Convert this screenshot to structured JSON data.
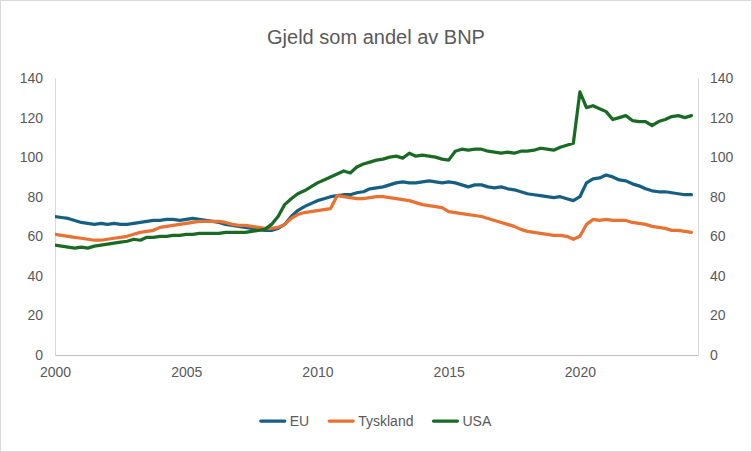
{
  "chart_data": {
    "type": "line",
    "title": "Gjeld som andel av BNP",
    "x": [
      2000,
      2000.25,
      2000.5,
      2000.75,
      2001,
      2001.25,
      2001.5,
      2001.75,
      2002,
      2002.25,
      2002.5,
      2002.75,
      2003,
      2003.25,
      2003.5,
      2003.75,
      2004,
      2004.25,
      2004.5,
      2004.75,
      2005,
      2005.25,
      2005.5,
      2005.75,
      2006,
      2006.25,
      2006.5,
      2006.75,
      2007,
      2007.25,
      2007.5,
      2007.75,
      2008,
      2008.25,
      2008.5,
      2008.75,
      2009,
      2009.25,
      2009.5,
      2009.75,
      2010,
      2010.25,
      2010.5,
      2010.75,
      2011,
      2011.25,
      2011.5,
      2011.75,
      2012,
      2012.25,
      2012.5,
      2012.75,
      2013,
      2013.25,
      2013.5,
      2013.75,
      2014,
      2014.25,
      2014.5,
      2014.75,
      2015,
      2015.25,
      2015.5,
      2015.75,
      2016,
      2016.25,
      2016.5,
      2016.75,
      2017,
      2017.25,
      2017.5,
      2017.75,
      2018,
      2018.25,
      2018.5,
      2018.75,
      2019,
      2019.25,
      2019.5,
      2019.75,
      2020,
      2020.25,
      2020.5,
      2020.75,
      2021,
      2021.25,
      2021.5,
      2021.75,
      2022,
      2022.25,
      2022.5,
      2022.75,
      2023,
      2023.25,
      2023.5,
      2023.75,
      2024,
      2024.25
    ],
    "series": [
      {
        "name": "EU",
        "color": "#156082",
        "values": [
          70,
          69.5,
          69,
          68,
          67,
          66.5,
          66,
          66.5,
          66,
          66.5,
          66,
          66,
          66.5,
          67,
          67.5,
          68,
          68,
          68.5,
          68.5,
          68,
          68.5,
          69,
          68.5,
          68,
          67.5,
          67,
          66,
          65.5,
          65,
          64.5,
          64,
          63.5,
          63,
          63,
          64,
          66,
          70,
          73,
          75,
          76.5,
          78,
          79,
          80,
          80.5,
          81,
          81,
          82,
          82.5,
          84,
          84.5,
          85,
          86,
          87,
          87.5,
          87,
          87,
          87.5,
          88,
          87.5,
          87,
          87.5,
          87,
          86,
          85,
          86,
          86,
          85,
          84.5,
          85,
          84,
          83.5,
          82.5,
          81.5,
          81,
          80.5,
          80,
          79.5,
          80,
          79,
          78,
          80,
          87,
          89,
          89.5,
          91,
          90,
          88.5,
          88,
          86.5,
          85.5,
          84,
          83,
          82.5,
          82.5,
          82,
          81.5,
          81,
          81
        ]
      },
      {
        "name": "Tyskland",
        "color": "#e97132",
        "values": [
          61,
          60.5,
          60,
          59.5,
          59,
          58.5,
          58,
          58,
          58.5,
          59,
          59.5,
          60,
          61,
          62,
          62.5,
          63,
          64.5,
          65,
          65.5,
          66,
          66.5,
          67,
          67.5,
          67.5,
          67.5,
          67.5,
          67,
          66,
          65.5,
          65.5,
          65,
          64.5,
          64,
          64,
          64.5,
          66,
          69,
          71,
          72,
          72.5,
          73,
          73.5,
          74,
          80.5,
          80,
          79.5,
          79,
          79,
          79.5,
          80,
          80,
          79.5,
          79,
          78.5,
          78,
          77,
          76,
          75.5,
          75,
          74.5,
          72.5,
          72,
          71.5,
          71,
          70.5,
          70,
          69,
          68,
          67,
          66,
          65,
          63.5,
          62.5,
          62,
          61.5,
          61,
          60.5,
          60.5,
          60,
          58.5,
          60,
          66,
          68.5,
          68,
          68.5,
          68,
          68,
          68,
          67,
          66.5,
          66,
          65,
          64.5,
          64,
          63,
          63,
          62.5,
          62
        ]
      },
      {
        "name": "USA",
        "color": "#196b24",
        "values": [
          55.5,
          55,
          54.5,
          54,
          54.5,
          54,
          55,
          55.5,
          56,
          56.5,
          57,
          57.5,
          58.5,
          58,
          59.5,
          59.5,
          60,
          60,
          60.5,
          60.5,
          61,
          61,
          61.5,
          61.5,
          61.5,
          61.5,
          62,
          62,
          62,
          62,
          62.5,
          63,
          63.5,
          66,
          70,
          76,
          79,
          81.5,
          83,
          85,
          87,
          88.5,
          90,
          91.5,
          93,
          92,
          95,
          96.5,
          97.5,
          98.5,
          99,
          100,
          100.5,
          99.5,
          102,
          100.5,
          101,
          100.5,
          100,
          99,
          98.5,
          103,
          104,
          103.5,
          104,
          104,
          103,
          102.5,
          102,
          102.5,
          102,
          103,
          103,
          103.5,
          104.5,
          104,
          103.5,
          105,
          106,
          107,
          133,
          125,
          126,
          124.5,
          123,
          119,
          120,
          121,
          118.5,
          118,
          118,
          116,
          118,
          119,
          120.5,
          121,
          120,
          121
        ]
      }
    ],
    "xlim": [
      2000,
      2024.5
    ],
    "xticks": [
      2000,
      2005,
      2010,
      2015,
      2020
    ],
    "ylim": [
      0,
      140
    ],
    "yticks": [
      0,
      20,
      40,
      60,
      80,
      100,
      120,
      140
    ],
    "y2lim": [
      0,
      140
    ],
    "y2ticks": [
      0,
      20,
      40,
      60,
      80,
      100,
      120,
      140
    ],
    "grid": false,
    "legend": "bottom"
  }
}
